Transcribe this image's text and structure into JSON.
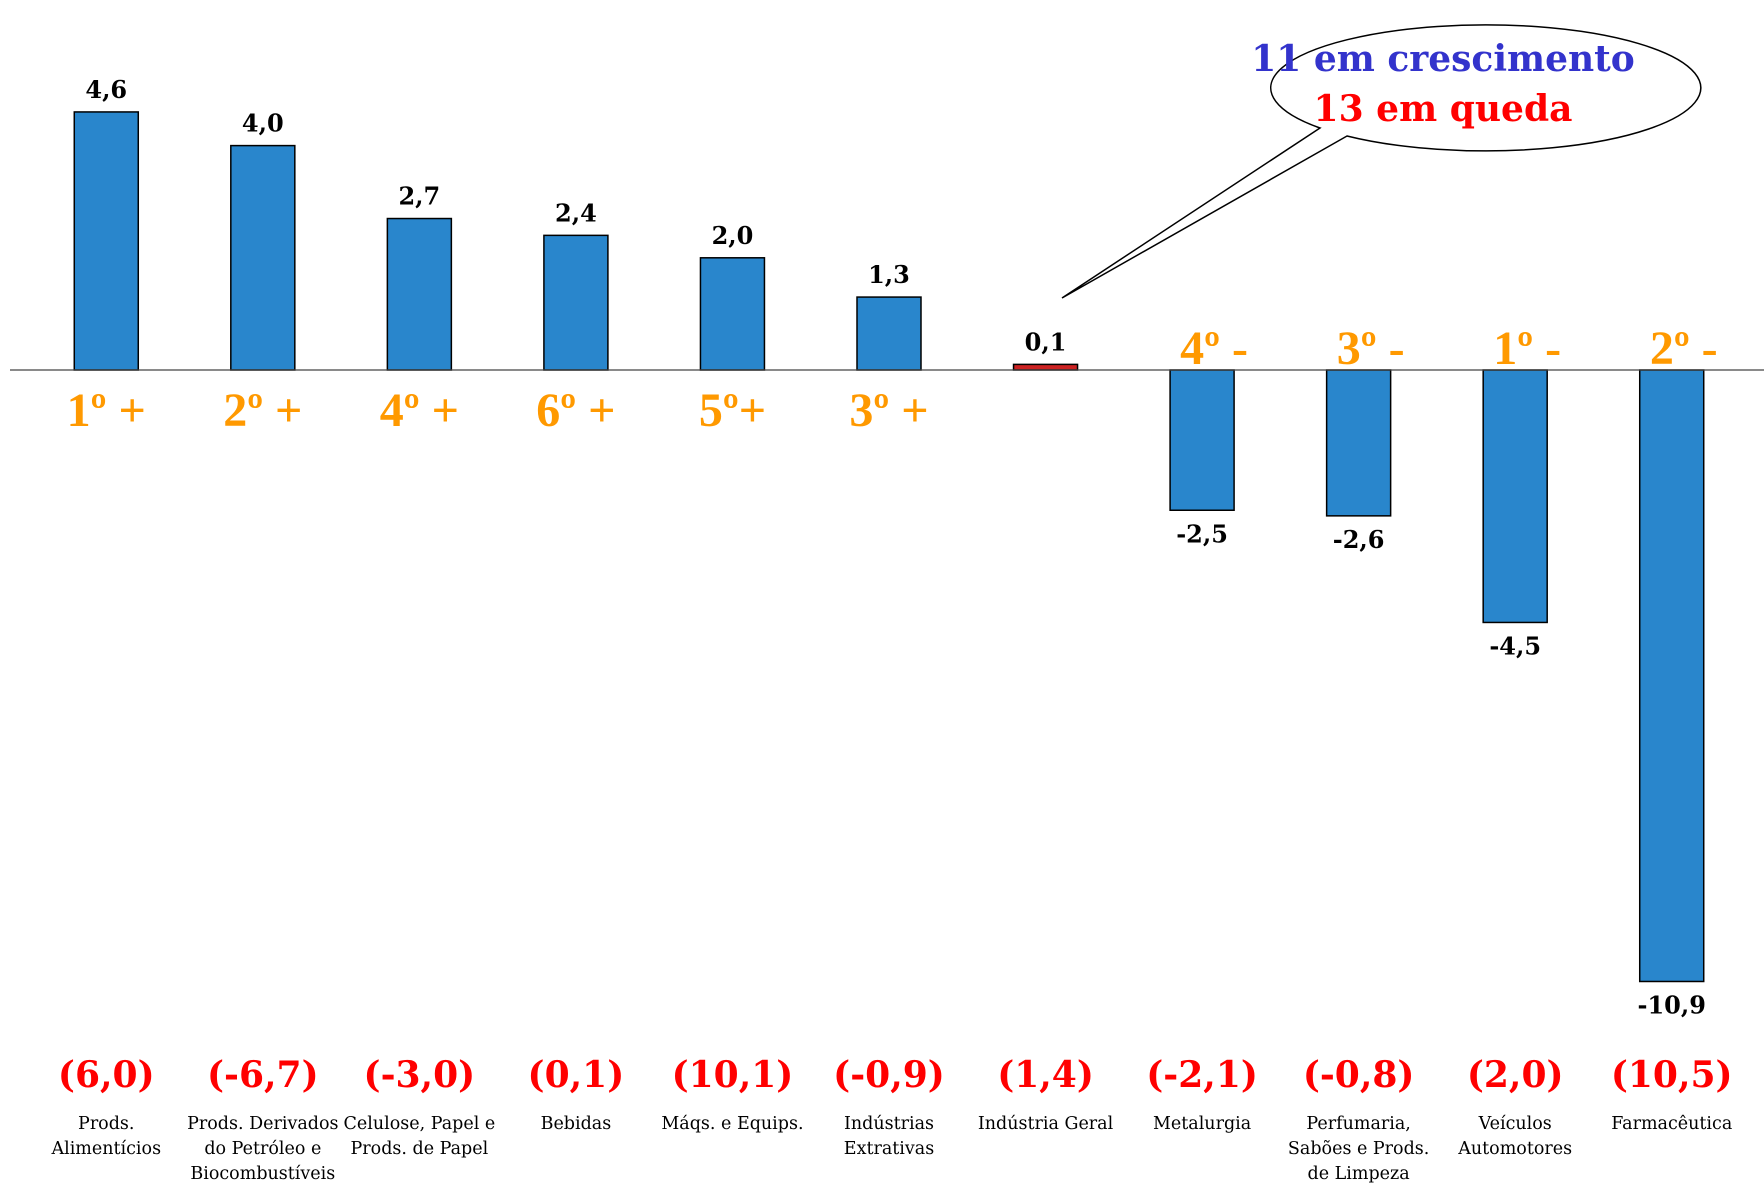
{
  "chart_data": {
    "type": "bar",
    "categories": [
      [
        "Prods.",
        "Alimentícios"
      ],
      [
        "Prods. Derivados",
        "do Petróleo e",
        "Biocombustíveis"
      ],
      [
        "Celulose, Papel e",
        "Prods. de Papel"
      ],
      [
        "Bebidas"
      ],
      [
        "Máqs. e Equips."
      ],
      [
        "Indústrias",
        "Extrativas"
      ],
      [
        "Indústria Geral"
      ],
      [
        "Metalurgia"
      ],
      [
        "Perfumaria,",
        "Sabões e Prods.",
        "de Limpeza"
      ],
      [
        "Veículos",
        "Automotores"
      ],
      [
        "Farmacêutica"
      ]
    ],
    "values": [
      4.6,
      4.0,
      2.7,
      2.4,
      2.0,
      1.3,
      0.1,
      -2.5,
      -2.6,
      -4.5,
      -10.9
    ],
    "value_labels": [
      "4,6",
      "4,0",
      "2,7",
      "2,4",
      "2,0",
      "1,3",
      "0,1",
      "-2,5",
      "-2,6",
      "-4,5",
      "-10,9"
    ],
    "previous_labels": [
      "(6,0)",
      "(-6,7)",
      "(-3,0)",
      "(0,1)",
      "(10,1)",
      "(-0,9)",
      "(1,4)",
      "(-2,1)",
      "(-0,8)",
      "(2,0)",
      "(10,5)"
    ],
    "rank_labels": [
      "1º +",
      "2º +",
      "4º +",
      "6º +",
      "5º+",
      "3º +",
      "",
      "4º -",
      "3º -",
      "1º -",
      "2º -"
    ],
    "highlight_index": 6,
    "colors": {
      "bar": "#2986cc",
      "highlight_bar": "#cc2222",
      "rank": "#ff9900",
      "previous": "#ff0000",
      "callout_line1": "#3333cc",
      "callout_line2": "#ff0000"
    },
    "callout": {
      "line1": "11 em crescimento",
      "line2": "13 em queda"
    },
    "title": "",
    "xlabel": "",
    "ylabel": "",
    "grid": false,
    "legend": "none"
  }
}
